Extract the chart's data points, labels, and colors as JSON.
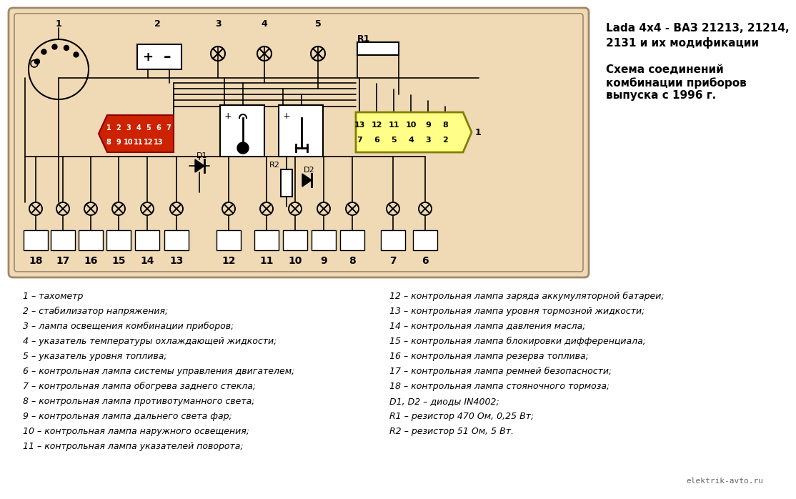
{
  "bg_color": "#f5deb3",
  "white_bg": "#ffffff",
  "title_line1": "Lada 4x4 - ВАЗ 21213, 21214,",
  "title_line2": "2131 и их модификации",
  "subtitle_line1": "Схема соединений",
  "subtitle_line2": "комбинации приборов",
  "subtitle_line3": "выпуска с 1996 г.",
  "watermark": "elektrik-avto.ru",
  "left_labels": [
    "1 – тахометр",
    "2 – стабилизатор напряжения;",
    "3 – лампа освещения комбинации приборов;",
    "4 – указатель температуры охлаждающей жидкости;",
    "5 – указатель уровня топлива;",
    "6 – контрольная лампа системы управления двигателем;",
    "7 – контрольная лампа обогрева заднего стекла;",
    "8 – контрольная лампа противотуманного света;",
    "9 – контрольная лампа дальнего света фар;",
    "10 – контрольная лампа наружного освещения;",
    "11 – контрольная лампа указателей поворота;"
  ],
  "right_labels": [
    "12 – контрольная лампа заряда аккумуляторной батареи;",
    "13 – контрольная лампа уровня тормозной жидкости;",
    "14 – контрольная лампа давления масла;",
    "15 – контрольная лампа блокировки дифференциала;",
    "16 – контрольная лампа резерва топлива;",
    "17 – контрольная лампа ремней безопасности;",
    "18 – контрольная лампа стояночного тормоза;",
    "D1, D2 – диоды IN4002;",
    "R1 – резистор 470 Ом, 0,25 Вт;",
    "R2 – резистор 51 Ом, 5 Вт."
  ],
  "red_conn_top": [
    "1",
    "2",
    "3",
    "4",
    "5",
    "6",
    "7"
  ],
  "red_conn_bot": [
    "8",
    "9",
    "10",
    "11",
    "12",
    "13"
  ],
  "yel_conn_top": [
    "13",
    "12",
    "11",
    "10",
    "9",
    "8"
  ],
  "yel_conn_bot": [
    "7",
    "6",
    "5",
    "4",
    "3",
    "2"
  ],
  "bottom_nums_x": [
    40,
    78,
    117,
    156,
    196,
    237,
    310,
    363,
    403,
    443,
    483,
    540,
    585
  ],
  "bottom_nums_v": [
    18,
    17,
    16,
    15,
    14,
    13,
    12,
    11,
    10,
    9,
    8,
    7,
    6
  ],
  "diagram_border_color": "#a0896a",
  "diagram_fill": "#f0d9b5"
}
